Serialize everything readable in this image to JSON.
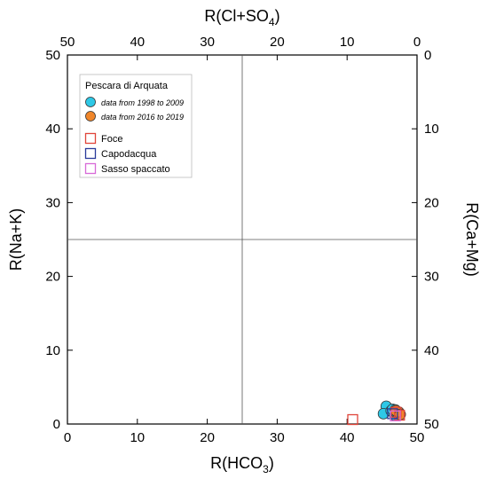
{
  "chart_data": {
    "type": "scatter",
    "title": "",
    "axes": {
      "bottom": {
        "label_main": "R(HCO",
        "label_sub": "3",
        "label_end": ")",
        "range": [
          0,
          50
        ],
        "ticks": [
          "0",
          "10",
          "20",
          "30",
          "40",
          "50"
        ]
      },
      "left": {
        "label": "R(Na+K)",
        "range": [
          0,
          50
        ],
        "ticks": [
          "0",
          "10",
          "20",
          "30",
          "40",
          "50"
        ]
      },
      "top": {
        "label_main": "R(Cl+SO",
        "label_sub": "4",
        "label_end": ")",
        "range": [
          50,
          0
        ],
        "ticks": [
          "50",
          "40",
          "30",
          "20",
          "10",
          "0"
        ]
      },
      "right": {
        "label": "R(Ca+Mg)",
        "range": [
          0,
          50
        ],
        "reversed": true,
        "ticks": [
          "0",
          "10",
          "20",
          "30",
          "40",
          "50"
        ]
      }
    },
    "dividers": {
      "x": 25,
      "y": 25
    },
    "grid": false,
    "legend": {
      "placement": "top-left",
      "title": "Pescara di Arquata",
      "entries": [
        {
          "label": "data from 1998 to 2009",
          "marker": "circle",
          "color": "#2ec8e6",
          "italic": true
        },
        {
          "label": "data from 2016 to 2019",
          "marker": "circle",
          "color": "#f0862a",
          "italic": true
        },
        {
          "label": "Foce",
          "marker": "square-open",
          "color": "#e0453a"
        },
        {
          "label": "Capodacqua",
          "marker": "square-open",
          "color": "#2a3a9a"
        },
        {
          "label": "Sasso spaccato",
          "marker": "square-open",
          "color": "#d86ad8"
        }
      ]
    },
    "series": [
      {
        "name": "data from 1998 to 2009",
        "marker": "circle",
        "color": "#2ec8e6",
        "points": [
          [
            45.6,
            2.4
          ],
          [
            45.2,
            1.4
          ],
          [
            46.3,
            1.8
          ],
          [
            46.8,
            1.2
          ],
          [
            47.0,
            1.6
          ],
          [
            46.5,
            2.0
          ],
          [
            47.3,
            1.4
          ],
          [
            46.9,
            1.9
          ]
        ]
      },
      {
        "name": "data from 2016 to 2019",
        "marker": "circle",
        "color": "#f0862a",
        "points": [
          [
            47.4,
            1.6
          ],
          [
            47.0,
            1.8
          ],
          [
            47.6,
            1.3
          ]
        ]
      },
      {
        "name": "Foce",
        "marker": "square-open",
        "color": "#e0453a",
        "points": [
          [
            40.8,
            0.6
          ],
          [
            47.0,
            1.6
          ],
          [
            47.5,
            1.2
          ]
        ]
      },
      {
        "name": "Capodacqua",
        "marker": "square-open",
        "color": "#2a3a9a",
        "points": [
          [
            46.5,
            1.4
          ]
        ]
      },
      {
        "name": "Sasso spaccato",
        "marker": "square-open",
        "color": "#d86ad8",
        "points": [
          [
            46.9,
            1.1
          ]
        ]
      }
    ]
  }
}
